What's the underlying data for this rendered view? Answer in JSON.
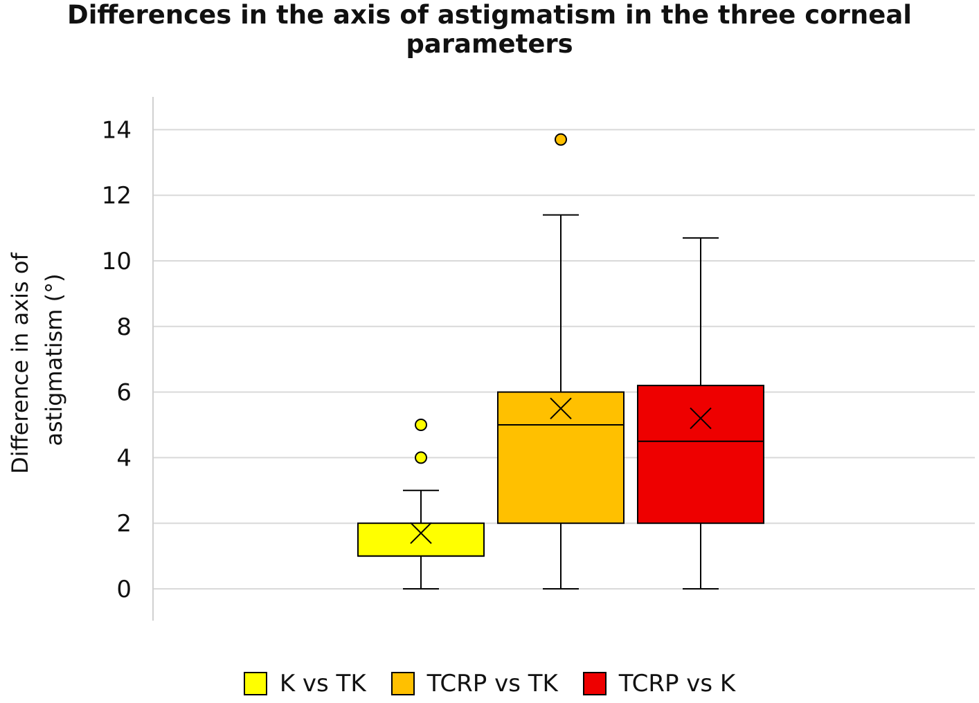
{
  "chart_data": {
    "type": "box",
    "title_lines": [
      "Differences in the axis of astigmatism in the three corneal",
      "parameters"
    ],
    "ylabel_lines": [
      "Difference in axis of",
      "astigmatism (°)"
    ],
    "ylim": [
      -1,
      15
    ],
    "yticks": [
      "0",
      "2",
      "4",
      "6",
      "8",
      "10",
      "12",
      "14"
    ],
    "grid": true,
    "legend_position": "bottom",
    "series": [
      {
        "name": "K vs TK",
        "color": "#FFFF00",
        "min": 0,
        "q1": 1,
        "median": 1,
        "q3": 2,
        "max": 3,
        "mean": 1.7,
        "outliers": [
          4,
          5
        ]
      },
      {
        "name": "TCRP vs TK",
        "color": "#FFC000",
        "min": 0,
        "q1": 2,
        "median": 5,
        "q3": 6,
        "max": 11.4,
        "mean": 5.5,
        "outliers": [
          13.7
        ]
      },
      {
        "name": "TCRP vs K",
        "color": "#EE0000",
        "min": 0,
        "q1": 2,
        "median": 4.5,
        "q3": 6.2,
        "max": 10.7,
        "mean": 5.2,
        "outliers": []
      }
    ]
  }
}
